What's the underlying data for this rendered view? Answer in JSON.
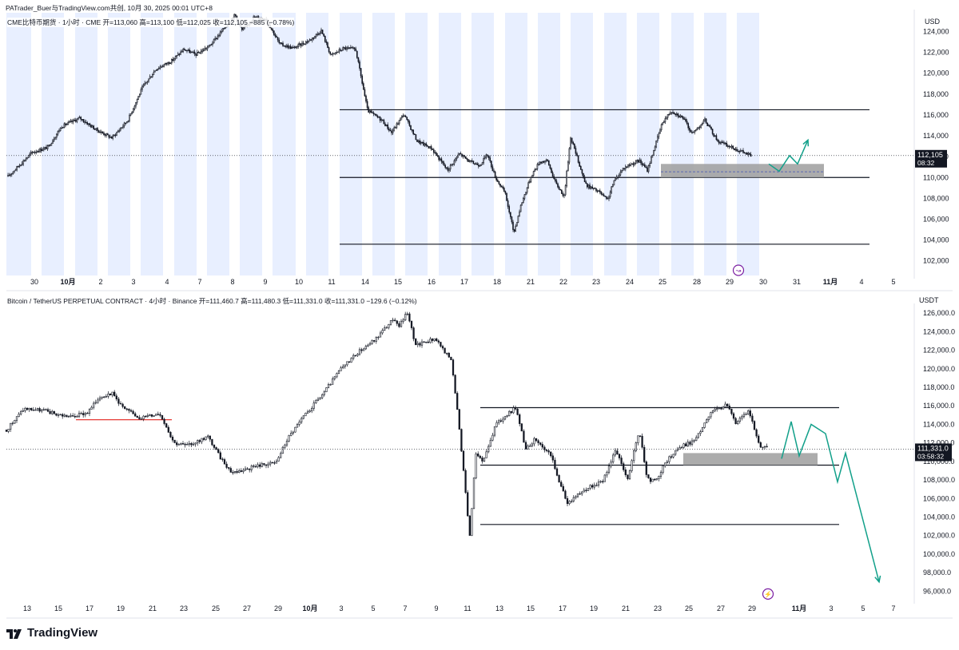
{
  "header": "PATrader_Buer与TradingView.com共创, 10月 30, 2025 00:01 UTC+8",
  "footer_brand": "TradingView",
  "colors": {
    "candle": "#131722",
    "session_band": "#e8efff",
    "zone": "#9e9e9e",
    "projection": "#12a08a",
    "red_line": "#e53935",
    "current_price_tag_bg": "#131722",
    "event_icon": "#7b1fa2"
  },
  "chart_data": [
    {
      "type": "candlestick",
      "title": "CME比特币期货 · 1小时 · CME  开=113,060  高=113,100  低=112,025  收=112,105  −885 (−0.78%)",
      "currency": "USD",
      "ylim": [
        100600,
        125800
      ],
      "y_ticks": [
        "102,000",
        "104,000",
        "106,000",
        "108,000",
        "110,000",
        "112,000",
        "114,000",
        "116,000",
        "118,000",
        "120,000",
        "122,000",
        "124,000"
      ],
      "x_ticks": [
        "30",
        "10月",
        "2",
        "3",
        "4",
        "7",
        "8",
        "9",
        "10",
        "11",
        "14",
        "15",
        "16",
        "17",
        "18",
        "21",
        "22",
        "23",
        "24",
        "25",
        "28",
        "29",
        "30",
        "31",
        "11月",
        "4",
        "5"
      ],
      "current_price": {
        "value": "112,105",
        "countdown": "08:32",
        "y": 112105
      },
      "horizontal_levels": [
        116500,
        110000,
        103600
      ],
      "demand_zone": {
        "from": 110000,
        "to": 111300,
        "mid_dashed": 110550
      },
      "path": [
        [
          0,
          110100
        ],
        [
          1,
          112400
        ],
        [
          2,
          112900
        ],
        [
          3,
          114900
        ],
        [
          4,
          115700
        ],
        [
          5,
          114600
        ],
        [
          6,
          113800
        ],
        [
          7,
          115500
        ],
        [
          8,
          118600
        ],
        [
          9,
          120400
        ],
        [
          10,
          121200
        ],
        [
          11,
          122300
        ],
        [
          12,
          121800
        ],
        [
          13,
          122600
        ],
        [
          14,
          124000
        ],
        [
          15,
          125600
        ],
        [
          16,
          124100
        ],
        [
          17,
          125400
        ],
        [
          18,
          125200
        ],
        [
          19,
          122800
        ],
        [
          20,
          122400
        ],
        [
          21,
          123200
        ],
        [
          22,
          124100
        ],
        [
          23,
          122500
        ],
        [
          24,
          121700
        ],
        [
          25,
          122400
        ],
        [
          26,
          122300
        ],
        [
          27,
          116400
        ],
        [
          28,
          115500
        ],
        [
          29,
          114300
        ],
        [
          30,
          116100
        ],
        [
          31,
          113500
        ],
        [
          32,
          112800
        ],
        [
          33,
          110700
        ],
        [
          34,
          112300
        ],
        [
          35,
          111500
        ],
        [
          36,
          111200
        ],
        [
          37,
          112200
        ],
        [
          38,
          110000
        ],
        [
          39,
          108500
        ],
        [
          40,
          104700
        ],
        [
          41,
          107400
        ],
        [
          42,
          110200
        ],
        [
          43,
          111500
        ],
        [
          44,
          111600
        ],
        [
          45,
          109500
        ],
        [
          46,
          108200
        ],
        [
          47,
          113900
        ],
        [
          48,
          109300
        ],
        [
          49,
          108600
        ],
        [
          50,
          107800
        ],
        [
          51,
          109600
        ],
        [
          52,
          110900
        ],
        [
          53,
          111300
        ],
        [
          54,
          111600
        ],
        [
          55,
          110700
        ],
        [
          56,
          115300
        ],
        [
          57,
          116400
        ],
        [
          58,
          115700
        ],
        [
          59,
          114200
        ],
        [
          60,
          115500
        ],
        [
          61,
          113500
        ],
        [
          62,
          113000
        ],
        [
          63,
          112100
        ]
      ],
      "path_x": [
        10,
        40,
        60,
        77,
        100,
        120,
        140,
        160,
        178,
        195,
        215,
        230,
        245,
        262,
        277,
        294,
        303,
        318,
        333,
        350,
        367,
        388,
        402,
        410,
        414,
        430,
        445,
        460,
        478,
        490,
        505,
        522,
        540,
        560,
        575,
        588,
        600,
        610,
        620,
        632,
        643,
        652,
        665,
        675,
        685,
        695,
        706,
        714,
        733,
        750,
        760,
        768,
        780,
        790,
        800,
        810,
        829,
        840,
        855,
        866,
        882,
        898,
        912,
        940
      ],
      "projection_x": [
        962,
        975,
        988,
        998,
        1011
      ],
      "projection_y": [
        111300,
        110600,
        112100,
        111300,
        113600
      ],
      "event_icon": {
        "symbol": "↝",
        "y": 101100
      }
    },
    {
      "type": "candlestick",
      "title": "Bitcoin / TetherUS PERPETUAL CONTRACT · 4小时 · Binance  开=111,460.7  高=111,480.3  低=111,331.0  收=111,331.0  −129.6 (−0.12%)",
      "currency": "USDT",
      "ylim": [
        95000,
        126700
      ],
      "y_ticks": [
        "96,000.0",
        "98,000.0",
        "100,000.0",
        "102,000.0",
        "104,000.0",
        "106,000.0",
        "108,000.0",
        "110,000.0",
        "112,000.0",
        "114,000.0",
        "116,000.0",
        "118,000.0",
        "120,000.0",
        "122,000.0",
        "124,000.0",
        "126,000.0"
      ],
      "x_ticks": [
        "13",
        "15",
        "17",
        "19",
        "21",
        "23",
        "25",
        "27",
        "29",
        "10月",
        "3",
        "5",
        "7",
        "9",
        "11",
        "13",
        "15",
        "17",
        "19",
        "21",
        "23",
        "25",
        "27",
        "29",
        "11月",
        "3",
        "5",
        "7"
      ],
      "current_price": {
        "value": "111,331.0",
        "countdown": "03:58:32",
        "y": 111331
      },
      "horizontal_levels": [
        115800,
        109600,
        103200
      ],
      "red_level": {
        "y": 114500
      },
      "demand_zone": {
        "from": 109600,
        "to": 110900
      },
      "path": [
        [
          0,
          113400
        ],
        [
          1,
          115700
        ],
        [
          2,
          115500
        ],
        [
          3,
          115100
        ],
        [
          4,
          114800
        ],
        [
          5,
          115300
        ],
        [
          6,
          117000
        ],
        [
          7,
          117400
        ],
        [
          8,
          115700
        ],
        [
          9,
          114700
        ],
        [
          10,
          115200
        ],
        [
          11,
          112000
        ],
        [
          12,
          111700
        ],
        [
          13,
          112700
        ],
        [
          14,
          110500
        ],
        [
          15,
          108800
        ],
        [
          16,
          109100
        ],
        [
          17,
          109700
        ],
        [
          18,
          109800
        ],
        [
          19,
          112500
        ],
        [
          20,
          114800
        ],
        [
          21,
          117400
        ],
        [
          22,
          119800
        ],
        [
          23,
          121600
        ],
        [
          24,
          123200
        ],
        [
          25,
          125200
        ],
        [
          26,
          124700
        ],
        [
          27,
          126100
        ],
        [
          28,
          122500
        ],
        [
          29,
          123300
        ],
        [
          30,
          120800
        ],
        [
          31,
          113400
        ],
        [
          32,
          101800
        ],
        [
          33,
          110800
        ],
        [
          34,
          110000
        ],
        [
          35,
          113900
        ],
        [
          36,
          115800
        ],
        [
          37,
          111300
        ],
        [
          38,
          112500
        ],
        [
          39,
          110500
        ],
        [
          40,
          107700
        ],
        [
          41,
          105500
        ],
        [
          42,
          106300
        ],
        [
          43,
          107100
        ],
        [
          44,
          108000
        ],
        [
          45,
          111300
        ],
        [
          46,
          108100
        ],
        [
          47,
          113400
        ],
        [
          48,
          108100
        ],
        [
          49,
          107800
        ],
        [
          50,
          109500
        ],
        [
          51,
          111200
        ],
        [
          52,
          111700
        ],
        [
          53,
          112300
        ],
        [
          54,
          115300
        ],
        [
          55,
          116100
        ],
        [
          56,
          114200
        ],
        [
          57,
          115500
        ],
        [
          58,
          111800
        ],
        [
          59,
          111300
        ]
      ],
      "path_x": [
        8,
        30,
        55,
        70,
        90,
        110,
        125,
        140,
        155,
        175,
        200,
        218,
        235,
        260,
        275,
        290,
        305,
        330,
        345,
        360,
        380,
        405,
        425,
        445,
        470,
        490,
        500,
        510,
        520,
        545,
        565,
        575,
        588,
        595,
        605,
        620,
        645,
        658,
        670,
        690,
        700,
        710,
        720,
        735,
        755,
        770,
        785,
        800,
        810,
        820,
        830,
        845,
        855,
        870,
        890,
        910,
        920,
        937,
        950,
        962
      ],
      "projection_x": [
        978,
        990,
        1000,
        1015,
        1033,
        1048,
        1058,
        1100
      ],
      "projection_y": [
        110300,
        114300,
        110600,
        114000,
        113000,
        107800,
        110900,
        97000
      ],
      "event_icon": {
        "symbol": "⚡",
        "y": 95700
      }
    }
  ]
}
